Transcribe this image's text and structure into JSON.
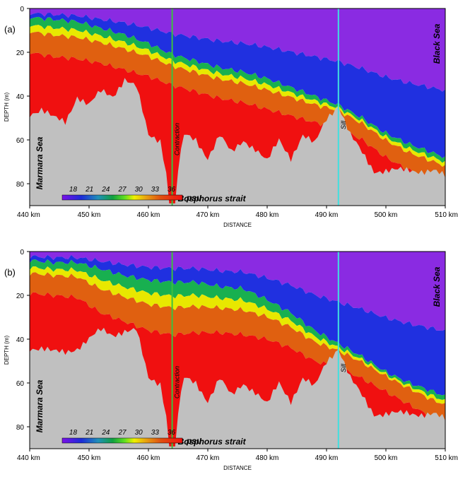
{
  "chart_data": [
    {
      "type": "heatmap",
      "panel_label": "(a)",
      "xlabel": "DISTANCE",
      "ylabel": "DEPTH (m)",
      "x_ticks": [
        "440 km",
        "450 km",
        "460 km",
        "470 km",
        "480 km",
        "490 km",
        "500 km",
        "510 km"
      ],
      "x_tick_values": [
        440,
        450,
        460,
        470,
        480,
        490,
        500,
        510
      ],
      "y_ticks": [
        "0",
        "20",
        "40",
        "60",
        "80"
      ],
      "y_tick_values": [
        0,
        20,
        40,
        60,
        80
      ],
      "xlim": [
        440,
        510
      ],
      "ylim": [
        90,
        0
      ],
      "variable_unit": "psu",
      "colorbar_ticks": [
        "18",
        "21",
        "24",
        "27",
        "30",
        "33",
        "36"
      ],
      "colorbar_values": [
        18,
        21,
        24,
        27,
        30,
        33,
        36
      ],
      "annotations": {
        "west": "Marmara Sea",
        "east": "Black Sea",
        "strait": "Bosphorus strait",
        "contraction": "Contraction",
        "sill": "Sill"
      },
      "contraction_x": 464,
      "sill_x": 492,
      "isohaline_depth": {
        "x": [
          440,
          444,
          448,
          452,
          456,
          460,
          464,
          468,
          472,
          476,
          480,
          484,
          488,
          492,
          496,
          500,
          504,
          508,
          510
        ],
        "fresh_bottom": [
          4,
          5,
          6,
          9,
          12,
          16,
          21,
          24,
          27,
          29,
          32,
          36,
          40,
          44,
          50,
          57,
          62,
          66,
          68
        ],
        "salt_top": [
          14,
          16,
          17,
          19,
          22,
          25,
          29,
          32,
          35,
          37,
          40,
          43,
          46,
          48,
          54,
          62,
          68,
          72,
          74
        ]
      },
      "bathymetry": {
        "x": [
          440,
          442,
          444,
          446,
          448,
          450,
          452,
          454,
          456,
          458,
          460,
          462,
          464,
          466,
          468,
          470,
          472,
          474,
          476,
          478,
          480,
          482,
          484,
          486,
          488,
          490,
          492,
          494,
          496,
          498,
          500,
          502,
          504,
          506,
          508,
          510
        ],
        "depth": [
          48,
          46,
          50,
          52,
          40,
          44,
          38,
          40,
          32,
          36,
          58,
          60,
          89,
          58,
          60,
          68,
          58,
          66,
          60,
          64,
          70,
          60,
          68,
          58,
          62,
          50,
          44,
          58,
          66,
          74,
          74,
          74,
          74,
          74,
          74,
          77
        ]
      },
      "colors": {
        "fresh": "#8a2be2",
        "brackish": "#2030e0",
        "mid": "#18b050",
        "halocline": "#e8e800",
        "salty": "#e06010",
        "marmara": "#f01010",
        "bottom": "#c0c0c0",
        "contraction_line": "#3cc040",
        "sill_line": "#40e0e0"
      }
    },
    {
      "type": "heatmap",
      "panel_label": "(b)",
      "xlabel": "DISTANCE",
      "ylabel": "DEPTH (m)",
      "x_ticks": [
        "440 km",
        "450 km",
        "460 km",
        "470 km",
        "480 km",
        "490 km",
        "500 km",
        "510 km"
      ],
      "x_tick_values": [
        440,
        450,
        460,
        470,
        480,
        490,
        500,
        510
      ],
      "y_ticks": [
        "0",
        "20",
        "40",
        "60",
        "80"
      ],
      "y_tick_values": [
        0,
        20,
        40,
        60,
        80
      ],
      "xlim": [
        440,
        510
      ],
      "ylim": [
        90,
        0
      ],
      "variable_unit": "psu",
      "colorbar_ticks": [
        "18",
        "21",
        "24",
        "27",
        "30",
        "33",
        "36"
      ],
      "colorbar_values": [
        18,
        21,
        24,
        27,
        30,
        33,
        36
      ],
      "annotations": {
        "west": "Marmara Sea",
        "east": "Black Sea",
        "strait": "Bosphorus strait",
        "contraction": "Contraction",
        "sill": "Sill"
      },
      "contraction_x": 464,
      "sill_x": 492,
      "isohaline_depth": {
        "x": [
          440,
          444,
          448,
          452,
          456,
          460,
          464,
          468,
          472,
          476,
          480,
          484,
          488,
          492,
          496,
          500,
          504,
          508,
          510
        ],
        "fresh_bottom": [
          4,
          5,
          5,
          8,
          11,
          13,
          14,
          14,
          16,
          17,
          22,
          28,
          36,
          42,
          48,
          55,
          60,
          64,
          66
        ],
        "salt_top": [
          13,
          14,
          15,
          22,
          26,
          30,
          32,
          31,
          31,
          32,
          34,
          38,
          44,
          47,
          52,
          58,
          64,
          70,
          72
        ]
      },
      "bathymetry": {
        "x": [
          440,
          442,
          444,
          446,
          448,
          450,
          452,
          454,
          456,
          458,
          460,
          462,
          464,
          466,
          468,
          470,
          472,
          474,
          476,
          478,
          480,
          482,
          484,
          486,
          488,
          490,
          492,
          494,
          496,
          498,
          500,
          502,
          504,
          506,
          508,
          510
        ],
        "depth": [
          44,
          44,
          46,
          46,
          44,
          40,
          36,
          38,
          36,
          36,
          58,
          60,
          89,
          58,
          60,
          68,
          58,
          66,
          60,
          64,
          70,
          60,
          68,
          58,
          62,
          50,
          44,
          58,
          66,
          74,
          74,
          74,
          74,
          74,
          74,
          77
        ]
      },
      "colors": {
        "fresh": "#8a2be2",
        "brackish": "#2030e0",
        "mid": "#18b050",
        "halocline": "#e8e800",
        "salty": "#e06010",
        "marmara": "#f01010",
        "bottom": "#c0c0c0",
        "contraction_line": "#3cc040",
        "sill_line": "#40e0e0"
      }
    }
  ]
}
